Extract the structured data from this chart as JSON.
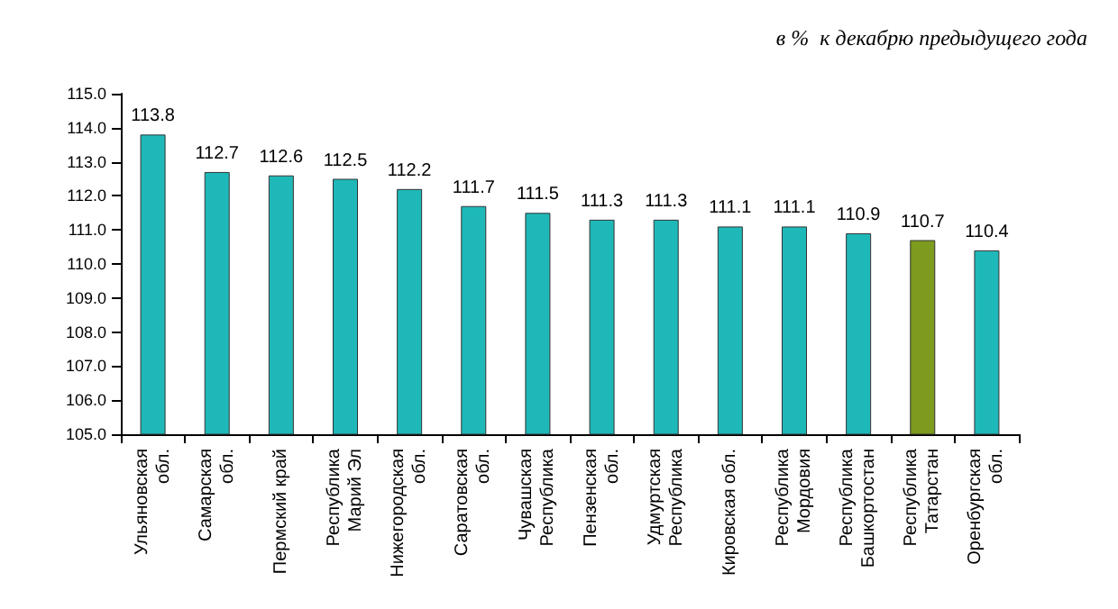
{
  "chart_data": {
    "type": "bar",
    "title": "в %  к декабрю предыдущего года",
    "categories": [
      "Ульяновская\nобл.",
      "Самарская\nобл.",
      "Пермский край",
      "Республика\nМарий Эл",
      "Нижегородская\nобл.",
      "Саратовская\nобл.",
      "Чувашская\nРеспублика",
      "Пензенская\nобл.",
      "Удмуртская\nРеспублика",
      "Кировская обл.",
      "Республика\nМордовия",
      "Республика\nБашкортостан",
      "Республика\nТатарстан",
      "Оренбургская\nобл."
    ],
    "values": [
      113.8,
      112.7,
      112.6,
      112.5,
      112.2,
      111.7,
      111.5,
      111.3,
      111.3,
      111.1,
      111.1,
      110.9,
      110.7,
      110.4
    ],
    "colors": [
      "#1fb8b8",
      "#1fb8b8",
      "#1fb8b8",
      "#1fb8b8",
      "#1fb8b8",
      "#1fb8b8",
      "#1fb8b8",
      "#1fb8b8",
      "#1fb8b8",
      "#1fb8b8",
      "#1fb8b8",
      "#1fb8b8",
      "#7d9b1e",
      "#1fb8b8"
    ],
    "ylim": [
      105,
      115
    ],
    "yticks": [
      {
        "value": 105,
        "label": "105.0"
      },
      {
        "value": 106,
        "label": "106.0"
      },
      {
        "value": 107,
        "label": "107.0"
      },
      {
        "value": 108,
        "label": "108.0"
      },
      {
        "value": 109,
        "label": "109.0"
      },
      {
        "value": 110,
        "label": "110.0"
      },
      {
        "value": 111,
        "label": "111.0"
      },
      {
        "value": 112,
        "label": "112.0"
      },
      {
        "value": 113,
        "label": "113.0"
      },
      {
        "value": 114,
        "label": "114.0"
      },
      {
        "value": 115,
        "label": "115.0"
      }
    ],
    "data_labels": true,
    "grid": false
  }
}
